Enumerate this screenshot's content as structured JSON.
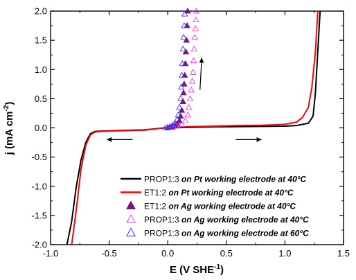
{
  "chart_data": {
    "type": "line",
    "xlabel_main": "E (V SHE",
    "xlabel_sup": "-1",
    "xlabel_end": ")",
    "ylabel_main": "j (mA cm",
    "ylabel_sup": "-2",
    "ylabel_end": ")",
    "xlim": [
      -1.0,
      1.5
    ],
    "ylim": [
      -2.0,
      2.0
    ],
    "xticks": [
      -1.0,
      -0.5,
      0.0,
      0.5,
      1.0,
      1.5
    ],
    "xtick_labels": [
      "-1.0",
      "-0.5",
      "0.0",
      "0.5",
      "1.0",
      "1.5"
    ],
    "yticks": [
      -2.0,
      -1.5,
      -1.0,
      -0.5,
      0.0,
      0.5,
      1.0,
      1.5,
      2.0
    ],
    "ytick_labels": [
      "-2.0",
      "-1.5",
      "-1.0",
      "-0.5",
      "0.0",
      "0.5",
      "1.0",
      "1.5",
      "2.0"
    ],
    "grid": false,
    "legend_position": "bottom-right",
    "series": [
      {
        "name": "PROP1:3",
        "condition": "on Pt working electrode at 40°C",
        "kind": "line",
        "color": "#000000",
        "x": [
          -0.86,
          -0.82,
          -0.78,
          -0.74,
          -0.7,
          -0.66,
          -0.62,
          -0.58,
          -0.5,
          -0.4,
          -0.2,
          0.0,
          0.2,
          0.4,
          0.6,
          0.8,
          1.0,
          1.1,
          1.2,
          1.24,
          1.26,
          1.28,
          1.3
        ],
        "y": [
          -2.0,
          -1.6,
          -1.0,
          -0.55,
          -0.25,
          -0.1,
          -0.06,
          -0.055,
          -0.05,
          -0.045,
          -0.035,
          0.005,
          0.01,
          0.015,
          0.02,
          0.025,
          0.03,
          0.04,
          0.08,
          0.2,
          0.6,
          1.3,
          2.0
        ]
      },
      {
        "name": "ET1:2",
        "condition": "on Pt working electrode at 40°C",
        "kind": "line",
        "color": "#ff0000",
        "x": [
          -0.82,
          -0.78,
          -0.74,
          -0.7,
          -0.66,
          -0.62,
          -0.58,
          -0.5,
          -0.4,
          -0.2,
          0.0,
          0.2,
          0.4,
          0.6,
          0.8,
          1.0,
          1.1,
          1.15,
          1.2,
          1.23,
          1.26,
          1.28
        ],
        "y": [
          -2.0,
          -1.4,
          -0.7,
          -0.3,
          -0.12,
          -0.07,
          -0.06,
          -0.055,
          -0.05,
          -0.04,
          0.01,
          0.02,
          0.03,
          0.04,
          0.045,
          0.06,
          0.1,
          0.18,
          0.35,
          0.7,
          1.3,
          2.0
        ]
      },
      {
        "name": "ET1:2",
        "condition": "on Ag working electrode at 40°C",
        "kind": "marker",
        "marker": "triangle-filled",
        "color": "#7b1380",
        "x": [
          0.0,
          0.02,
          0.04,
          0.06,
          0.08,
          0.1,
          0.11,
          0.12,
          0.13,
          0.135,
          0.14,
          0.145,
          0.15,
          0.155,
          0.16,
          0.165,
          0.17
        ],
        "y": [
          0.0,
          0.01,
          0.02,
          0.04,
          0.07,
          0.12,
          0.2,
          0.3,
          0.45,
          0.6,
          0.75,
          0.9,
          1.1,
          1.3,
          1.5,
          1.75,
          2.0
        ]
      },
      {
        "name": "PROP1:3",
        "condition": "on Ag working electrode at 40°C",
        "kind": "marker",
        "marker": "triangle-open",
        "color": "#ff33ff",
        "x": [
          0.0,
          0.04,
          0.08,
          0.12,
          0.15,
          0.17,
          0.18,
          0.19,
          0.2,
          0.21,
          0.215,
          0.22,
          0.225,
          0.23,
          0.235,
          0.24,
          0.245
        ],
        "y": [
          0.0,
          0.01,
          0.03,
          0.06,
          0.12,
          0.22,
          0.35,
          0.5,
          0.65,
          0.8,
          0.95,
          1.15,
          1.35,
          1.55,
          1.7,
          1.85,
          2.0
        ]
      },
      {
        "name": "PROP1:3",
        "condition": "on Ag working electrode at 60°C",
        "kind": "marker",
        "marker": "triangle-open",
        "color": "#3333ff",
        "x": [
          -0.02,
          0.0,
          0.02,
          0.04,
          0.06,
          0.08,
          0.09,
          0.1,
          0.11,
          0.115,
          0.12,
          0.125,
          0.13,
          0.135,
          0.14,
          0.145
        ],
        "y": [
          0.0,
          0.01,
          0.02,
          0.04,
          0.08,
          0.14,
          0.22,
          0.35,
          0.5,
          0.7,
          0.9,
          1.1,
          1.35,
          1.55,
          1.75,
          1.95
        ]
      }
    ],
    "annotations": [
      {
        "type": "arrow",
        "from": [
          -0.3,
          -0.2
        ],
        "to": [
          -0.52,
          -0.2
        ],
        "meaning": "scan direction"
      },
      {
        "type": "arrow",
        "from": [
          0.58,
          -0.2
        ],
        "to": [
          0.8,
          -0.2
        ],
        "meaning": "scan direction"
      },
      {
        "type": "arrow",
        "from": [
          0.275,
          0.65
        ],
        "to": [
          0.29,
          1.2
        ],
        "meaning": "scan direction"
      }
    ]
  }
}
